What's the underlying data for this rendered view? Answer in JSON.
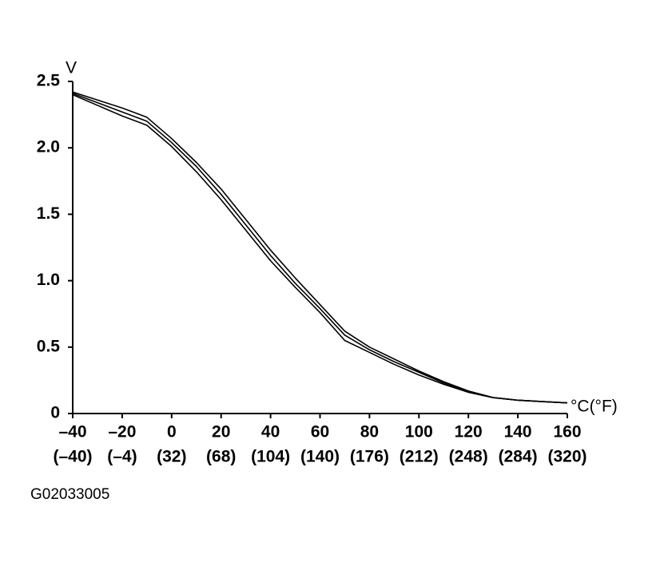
{
  "chart_data": {
    "type": "line",
    "y_label": "V",
    "x_label": "°C(°F)",
    "figure_id": "G02033005",
    "x": [
      -40,
      -30,
      -20,
      -10,
      0,
      10,
      20,
      30,
      40,
      50,
      60,
      70,
      80,
      90,
      100,
      110,
      120,
      130,
      140,
      150,
      160
    ],
    "series": [
      {
        "color": "#000000",
        "values": [
          2.42,
          2.36,
          2.3,
          2.23,
          2.07,
          1.89,
          1.69,
          1.46,
          1.23,
          1.02,
          0.82,
          0.62,
          0.5,
          0.41,
          0.32,
          0.24,
          0.17,
          0.12,
          0.1,
          0.09,
          0.08
        ]
      },
      {
        "color": "#000000",
        "values": [
          2.41,
          2.34,
          2.27,
          2.2,
          2.04,
          1.86,
          1.65,
          1.42,
          1.19,
          0.98,
          0.79,
          0.59,
          0.48,
          0.39,
          0.31,
          0.23,
          0.16,
          0.12,
          0.1,
          0.09,
          0.08
        ]
      },
      {
        "color": "#000000",
        "values": [
          2.4,
          2.32,
          2.24,
          2.17,
          2.01,
          1.82,
          1.61,
          1.38,
          1.15,
          0.95,
          0.76,
          0.55,
          0.46,
          0.37,
          0.29,
          0.22,
          0.16,
          0.12,
          0.1,
          0.09,
          0.08
        ]
      }
    ],
    "xlim": [
      -40,
      160
    ],
    "xticks": [
      {
        "value": -40,
        "label": "–40"
      },
      {
        "value": -20,
        "label": "–20"
      },
      0,
      20,
      40,
      60,
      80,
      100,
      120,
      140,
      160
    ],
    "xticks_secondary_labels": [
      "(–40)",
      "(–4)",
      "(32)",
      "(68)",
      "(104)",
      "(140)",
      "(176)",
      "(212)",
      "(248)",
      "(284)",
      "(320)"
    ],
    "ylim": [
      0,
      2.5
    ],
    "yticks": [
      0,
      0.5,
      {
        "value": 1,
        "label": "1.0"
      },
      1.5,
      {
        "value": 2,
        "label": "2.0"
      },
      2.5
    ],
    "grid": false
  }
}
